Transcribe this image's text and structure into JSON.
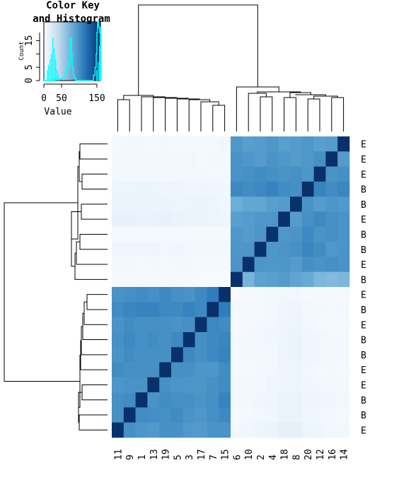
{
  "chart_data": {
    "type": "heatmap",
    "key": {
      "title_line1": "Color Key",
      "title_line2": "and Histogram",
      "xlabel": "Value",
      "ylabel": "Count",
      "x_ticks": [
        "0",
        "50",
        "150"
      ],
      "x_tick_values": [
        0,
        50,
        150
      ],
      "y_ticks": [
        "0",
        "5",
        "15"
      ],
      "y_tick_values": [
        0,
        5,
        15
      ],
      "range": [
        0,
        160
      ],
      "hist_color": "#00ffff",
      "density_line": [
        [
          0,
          0
        ],
        [
          30,
          0
        ],
        [
          50,
          0.5
        ],
        [
          60,
          1
        ],
        [
          65,
          3
        ],
        [
          70,
          5
        ],
        [
          75,
          7
        ],
        [
          78,
          16
        ],
        [
          80,
          10
        ],
        [
          83,
          5
        ],
        [
          86,
          2
        ],
        [
          90,
          1
        ],
        [
          100,
          0
        ],
        [
          140,
          0
        ],
        [
          145,
          2
        ],
        [
          148,
          5
        ],
        [
          150,
          10
        ],
        [
          152,
          18
        ],
        [
          155,
          22
        ],
        [
          158,
          20
        ],
        [
          160,
          18
        ]
      ]
    },
    "col_labels": [
      "11",
      "9",
      "1",
      "13",
      "19",
      "5",
      "3",
      "17",
      "7",
      "15",
      "6",
      "10",
      "2",
      "4",
      "18",
      "8",
      "20",
      "12",
      "16",
      "14"
    ],
    "row_labels": [
      "E",
      "E",
      "E",
      "B",
      "B",
      "E",
      "B",
      "B",
      "E",
      "B",
      "E",
      "B",
      "E",
      "B",
      "B",
      "E",
      "E",
      "B",
      "B",
      "E"
    ],
    "values": [
      [
        3,
        4,
        4,
        3,
        4,
        3,
        3,
        3,
        2,
        5,
        95,
        90,
        92,
        95,
        90,
        92,
        95,
        90,
        92,
        160
      ],
      [
        4,
        5,
        4,
        5,
        4,
        4,
        5,
        3,
        4,
        4,
        98,
        95,
        92,
        98,
        95,
        92,
        95,
        100,
        160,
        92
      ],
      [
        5,
        5,
        5,
        5,
        4,
        5,
        4,
        4,
        3,
        3,
        98,
        100,
        102,
        100,
        98,
        100,
        96,
        160,
        98,
        100
      ],
      [
        8,
        8,
        9,
        8,
        7,
        8,
        6,
        7,
        6,
        5,
        105,
        102,
        105,
        108,
        102,
        100,
        160,
        108,
        102,
        106
      ],
      [
        10,
        10,
        10,
        9,
        9,
        8,
        8,
        9,
        8,
        6,
        80,
        85,
        85,
        90,
        92,
        160,
        98,
        92,
        96,
        94
      ],
      [
        12,
        12,
        11,
        11,
        12,
        11,
        10,
        9,
        8,
        7,
        90,
        92,
        95,
        95,
        160,
        92,
        100,
        104,
        100,
        98
      ],
      [
        3,
        3,
        3,
        3,
        3,
        3,
        3,
        2,
        3,
        2,
        95,
        92,
        96,
        160,
        95,
        97,
        104,
        98,
        100,
        98
      ],
      [
        6,
        6,
        6,
        7,
        5,
        6,
        5,
        5,
        4,
        4,
        96,
        96,
        160,
        96,
        97,
        100,
        106,
        102,
        95,
        97
      ],
      [
        4,
        4,
        3,
        4,
        3,
        4,
        4,
        3,
        3,
        2,
        97,
        160,
        96,
        95,
        96,
        92,
        100,
        98,
        100,
        98
      ],
      [
        2,
        2,
        2,
        2,
        2,
        2,
        2,
        1,
        1,
        1,
        160,
        75,
        88,
        90,
        92,
        86,
        82,
        72,
        70,
        72
      ],
      [
        98,
        100,
        102,
        100,
        104,
        100,
        98,
        104,
        112,
        160,
        1,
        2,
        3,
        4,
        5,
        5,
        3,
        3,
        2,
        2
      ],
      [
        102,
        106,
        108,
        108,
        104,
        104,
        108,
        104,
        160,
        112,
        4,
        3,
        3,
        4,
        6,
        7,
        5,
        4,
        3,
        4
      ],
      [
        98,
        102,
        100,
        100,
        100,
        98,
        100,
        160,
        105,
        102,
        2,
        2,
        4,
        5,
        7,
        8,
        5,
        3,
        3,
        3
      ],
      [
        100,
        104,
        100,
        102,
        100,
        104,
        160,
        100,
        104,
        106,
        4,
        4,
        5,
        6,
        8,
        9,
        6,
        5,
        4,
        4
      ],
      [
        98,
        102,
        100,
        100,
        100,
        160,
        105,
        100,
        104,
        108,
        3,
        4,
        4,
        5,
        8,
        9,
        6,
        5,
        4,
        4
      ],
      [
        102,
        100,
        100,
        100,
        160,
        100,
        100,
        96,
        96,
        102,
        3,
        3,
        4,
        5,
        7,
        8,
        5,
        3,
        4,
        3
      ],
      [
        96,
        98,
        98,
        160,
        100,
        97,
        96,
        96,
        100,
        102,
        4,
        4,
        4,
        6,
        7,
        8,
        6,
        5,
        4,
        4
      ],
      [
        100,
        102,
        160,
        98,
        102,
        100,
        100,
        98,
        100,
        108,
        4,
        4,
        6,
        7,
        10,
        10,
        7,
        7,
        6,
        5
      ],
      [
        100,
        160,
        102,
        101,
        100,
        103,
        98,
        95,
        100,
        104,
        2,
        3,
        5,
        6,
        9,
        10,
        6,
        5,
        4,
        3
      ],
      [
        160,
        100,
        96,
        94,
        100,
        99,
        94,
        93,
        98,
        98,
        5,
        6,
        8,
        10,
        14,
        14,
        8,
        7,
        5,
        5
      ]
    ],
    "col_dendrogram": [
      [
        [
          0,
          1
        ],
        [
          2,
          3
        ],
        [
          4,
          5
        ],
        [
          6,
          7
        ],
        [
          8,
          9
        ],
        [
          10,
          11
        ],
        [
          12,
          13
        ],
        [
          14,
          15
        ],
        [
          16,
          17
        ],
        [
          18,
          19
        ]
      ],
      "merged"
    ],
    "row_dendrogram_groups": [
      [
        0,
        9
      ],
      [
        10,
        19
      ]
    ],
    "colorscale": [
      "#f7fbff",
      "#c6dbef",
      "#6baed6",
      "#2171b5",
      "#08306b"
    ]
  }
}
